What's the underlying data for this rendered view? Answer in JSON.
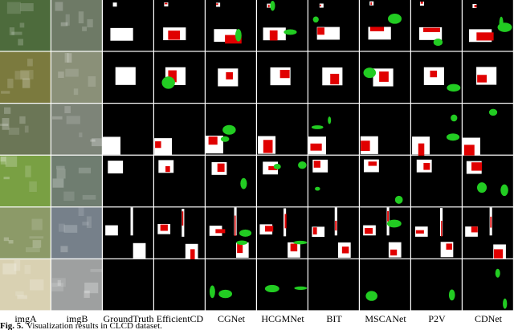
{
  "figure": {
    "column_labels": [
      "imgA",
      "imgB",
      "GroundTruth",
      "EfficientCD",
      "CGNet",
      "HCGMNet",
      "BIT",
      "MSCANet",
      "P2V",
      "CDNet"
    ],
    "caption": {
      "label": "Fig. 5.",
      "text": "Visualization results in CLCD dataset."
    }
  }
}
